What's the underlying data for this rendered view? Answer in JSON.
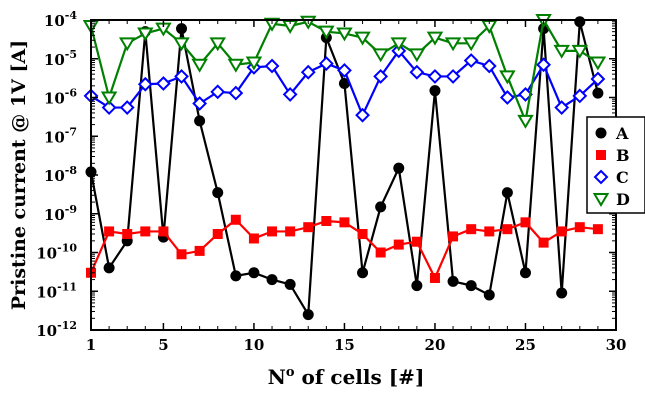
{
  "chart_data": {
    "type": "line",
    "xlabel_main": "N",
    "xlabel_sup": "o",
    "xlabel_rest": " of cells [#]",
    "ylabel": "Pristine current @ 1V [A]",
    "x_ticks": [
      "1",
      "5",
      "10",
      "15",
      "20",
      "25",
      "30"
    ],
    "xlim": [
      1,
      30
    ],
    "ylim": [
      1e-12,
      0.0001
    ],
    "y_scale": "log",
    "y_ticks": [
      {
        "base": "10",
        "exp": "-12"
      },
      {
        "base": "10",
        "exp": "-11"
      },
      {
        "base": "10",
        "exp": "-10"
      },
      {
        "base": "10",
        "exp": "-9"
      },
      {
        "base": "10",
        "exp": "-8"
      },
      {
        "base": "10",
        "exp": "-7"
      },
      {
        "base": "10",
        "exp": "-6"
      },
      {
        "base": "10",
        "exp": "-5"
      },
      {
        "base": "10",
        "exp": "-4"
      }
    ],
    "legend_position": "right",
    "x": [
      1,
      2,
      3,
      4,
      5,
      6,
      7,
      8,
      9,
      10,
      11,
      12,
      13,
      14,
      15,
      16,
      17,
      18,
      19,
      20,
      21,
      22,
      23,
      24,
      25,
      26,
      27,
      28,
      29
    ],
    "series": [
      {
        "name": "A",
        "color": "#000000",
        "marker": "circle",
        "values": [
          1.2e-08,
          4e-11,
          2e-10,
          5e-05,
          2.5e-10,
          6e-05,
          2.5e-07,
          3.5e-09,
          2.5e-11,
          3e-11,
          2e-11,
          1.5e-11,
          2.5e-12,
          3.5e-05,
          2.3e-06,
          3e-11,
          1.5e-09,
          1.5e-08,
          1.4e-11,
          1.5e-06,
          1.8e-11,
          1.4e-11,
          8e-12,
          3.5e-09,
          3e-11,
          6e-05,
          9e-12,
          9e-05,
          1.3e-06
        ]
      },
      {
        "name": "B",
        "color": "#ff0000",
        "marker": "square",
        "values": [
          3e-11,
          3.5e-10,
          3e-10,
          3.5e-10,
          3.5e-10,
          9e-11,
          1.1e-10,
          3e-10,
          7e-10,
          2.3e-10,
          3.5e-10,
          3.5e-10,
          4.5e-10,
          6.5e-10,
          6e-10,
          3e-10,
          1e-10,
          1.6e-10,
          1.9e-10,
          2.2e-11,
          2.6e-10,
          4e-10,
          3.5e-10,
          4e-10,
          6e-10,
          1.8e-10,
          3.5e-10,
          4.5e-10,
          4e-10
        ]
      },
      {
        "name": "C",
        "color": "#0000ff",
        "marker": "diamond",
        "values": [
          1.1e-06,
          5.5e-07,
          5.5e-07,
          2.2e-06,
          2.3e-06,
          3.5e-06,
          7e-07,
          1.4e-06,
          1.3e-06,
          6e-06,
          6.5e-06,
          1.2e-06,
          4.5e-06,
          7.5e-06,
          5e-06,
          3.5e-07,
          3.5e-06,
          1.6e-05,
          4.5e-06,
          3.5e-06,
          3.5e-06,
          9e-06,
          6.5e-06,
          1e-06,
          1.2e-06,
          7e-06,
          5.5e-07,
          1.1e-06,
          3e-06
        ]
      },
      {
        "name": "D",
        "color": "#008000",
        "marker": "triangle-down",
        "values": [
          7e-05,
          1e-06,
          2.5e-05,
          4.5e-05,
          6e-05,
          2.5e-05,
          7e-06,
          2.5e-05,
          7e-06,
          8e-06,
          8e-05,
          7e-05,
          9e-05,
          5e-05,
          4.5e-05,
          3.5e-05,
          1.3e-05,
          2.5e-05,
          1.3e-05,
          3.5e-05,
          2.5e-05,
          2.5e-05,
          7e-05,
          3.5e-06,
          2.5e-07,
          0.0001,
          1.6e-05,
          1.6e-05,
          8e-06
        ]
      }
    ]
  }
}
